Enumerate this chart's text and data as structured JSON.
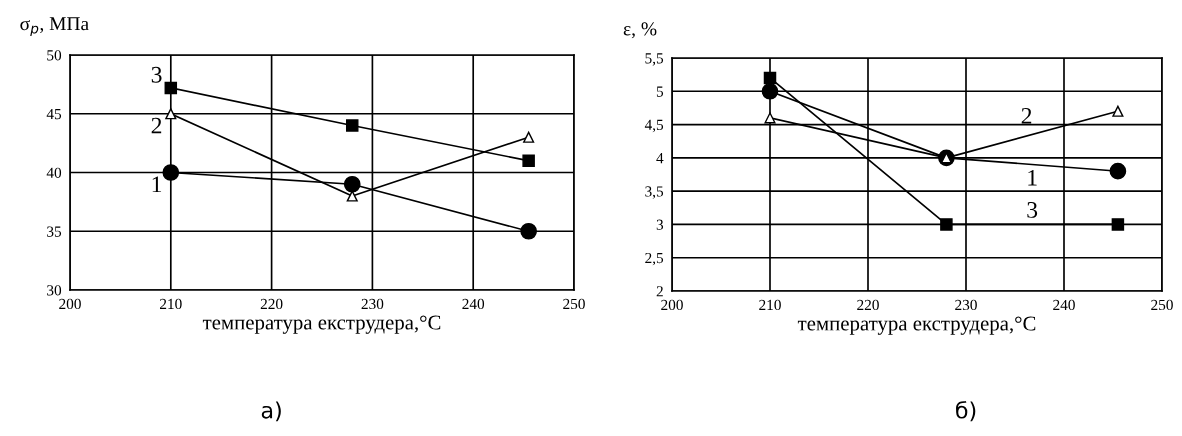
{
  "chart_data": [
    {
      "type": "line",
      "ylabel": "σ$_{p}$, МПа",
      "xlabel": "температура екструдера,°C",
      "annotations": [
        "а)"
      ],
      "x": [
        210,
        228,
        245.5
      ],
      "xlim": [
        200,
        250
      ],
      "xticks": [
        200,
        210,
        220,
        230,
        240,
        250
      ],
      "ylim": [
        30,
        50
      ],
      "yticks": [
        30,
        35,
        40,
        45,
        50
      ],
      "grid": true,
      "legend": false,
      "series": [
        {
          "name": "1",
          "color": "#000000",
          "marker": "circle",
          "values": [
            40,
            39,
            35
          ]
        },
        {
          "name": "2",
          "color": "#000000",
          "marker": "triangle",
          "values": [
            45,
            38,
            43
          ]
        },
        {
          "name": "3",
          "color": "#000000",
          "marker": "square",
          "values": [
            47.2,
            44,
            41
          ]
        }
      ]
    },
    {
      "type": "line",
      "ylabel": "ε, %",
      "xlabel": "температура екструдера,°C",
      "annotations": [
        "б)"
      ],
      "x": [
        210,
        228,
        245.5
      ],
      "xlim": [
        200,
        250
      ],
      "xticks": [
        200,
        210,
        220,
        230,
        240,
        250
      ],
      "ylim": [
        2,
        5.5
      ],
      "yticks": [
        2,
        {
          "value": 2.5,
          "label": "2,5"
        },
        3,
        {
          "value": 3.5,
          "label": "3,5"
        },
        4,
        {
          "value": 4.5,
          "label": "4,5"
        },
        5,
        {
          "value": 5.5,
          "label": "5,5"
        }
      ],
      "grid": true,
      "legend": false,
      "series": [
        {
          "name": "1",
          "color": "#000000",
          "marker": "circle",
          "values": [
            5,
            4,
            3.8
          ]
        },
        {
          "name": "2",
          "color": "#000000",
          "marker": "triangle",
          "values": [
            4.6,
            4,
            4.7
          ]
        },
        {
          "name": "3",
          "color": "#000000",
          "marker": "square",
          "values": [
            5.2,
            3,
            3
          ]
        }
      ]
    }
  ]
}
